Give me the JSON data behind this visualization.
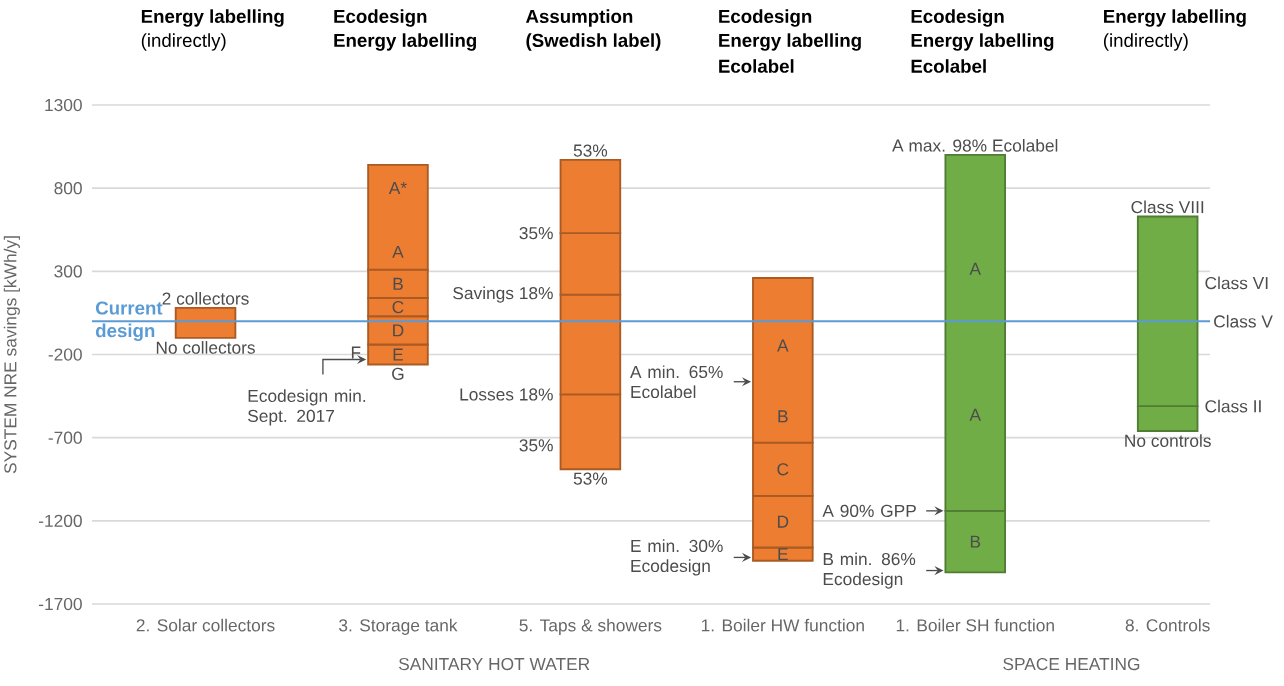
{
  "chart_data": {
    "type": "bar",
    "categories": [
      "2. Solar collectors",
      "3. Storage tank",
      "5. Taps & showers",
      "1. Boiler HW function",
      "1. Boiler SH function",
      "8. Controls"
    ],
    "series": [
      {
        "colors": [
          "#ed7d31",
          "#ed7d31",
          "#ed7d31",
          "#ed7d31",
          "#70ad47",
          "#70ad47"
        ],
        "base": [
          -100,
          -260,
          -890,
          -1440,
          -1510,
          -660
        ],
        "values": [
          180,
          120,
          450,
          80,
          370,
          150
        ]
      },
      {
        "colors": [
          "#ed7d31",
          "#ed7d31",
          "#ed7d31",
          "#ed7d31",
          "#70ad47",
          "#70ad47"
        ],
        "base": [
          null,
          -140,
          -440,
          -1360,
          -1140,
          -510
        ],
        "values": [
          null,
          170,
          600,
          310,
          2140,
          1140
        ]
      },
      {
        "colors": [
          "#ed7d31",
          "#ed7d31",
          "#ed7d31",
          "#ed7d31",
          "#70ad47",
          "#70ad47"
        ],
        "base": [
          null,
          30,
          160,
          -1050,
          null,
          null
        ],
        "values": [
          null,
          110,
          370,
          320,
          null,
          null
        ]
      },
      {
        "colors": [
          "#ed7d31",
          "#ed7d31",
          "#ed7d31",
          "#ed7d31",
          "#70ad47",
          "#70ad47"
        ],
        "base": [
          null,
          140,
          530,
          -730,
          null,
          null
        ],
        "values": [
          null,
          170,
          440,
          990,
          null,
          null
        ]
      },
      {
        "colors": [
          "#ed7d31",
          "#ed7d31",
          "#ed7d31",
          "#ed7d31",
          "#70ad47",
          "#70ad47"
        ],
        "base": [
          null,
          310,
          null,
          null,
          null,
          null
        ],
        "values": [
          null,
          630,
          null,
          null,
          null,
          null
        ]
      }
    ],
    "ylabel": "SYSTEM NRE savings [kWh/y]",
    "ylim": [
      -1700,
      1300
    ],
    "yticks": [
      1300,
      800,
      300,
      -200,
      -700,
      -1200,
      -1700
    ],
    "grid": "y",
    "ref_lines": [
      {
        "axis": "y",
        "value": 0,
        "label": "Current design",
        "color": "#5b9bd5"
      }
    ],
    "annotations": [
      "Energy labelling",
      "(indirectly)",
      "Ecodesign",
      "Energy labelling",
      "Assumption",
      "(Swedish label)",
      "Ecodesign",
      "Energy labelling",
      "Ecolabel",
      "Ecodesign",
      "Energy labelling",
      "Ecolabel",
      "Energy labelling",
      "(indirectly)",
      "SANITARY HOT WATER",
      "SPACE HEATING",
      {
        "text": "2 collectors",
        "x": "2. Solar collectors",
        "y": 80
      },
      {
        "text": "No collectors",
        "x": "2. Solar collectors",
        "y": -100
      },
      "A*",
      "A",
      "B",
      "C",
      "D",
      "E",
      {
        "text": "G",
        "x": "3. Storage tank",
        "y": -260
      },
      "F",
      "Ecodesign min. Sept. 2017",
      {
        "text": "53%",
        "x": "5. Taps & showers",
        "y": 970
      },
      {
        "text": "35%",
        "x": "5. Taps & showers",
        "y": 530
      },
      {
        "text": "Savings 18%",
        "x": "5. Taps & showers",
        "y": 160
      },
      {
        "text": "Losses 18%",
        "x": "5. Taps & showers",
        "y": -440
      },
      "35%",
      {
        "text": "53%",
        "x": "5. Taps & showers",
        "y": -890
      },
      "A min. 65% Ecolabel",
      "A",
      "B",
      "C",
      "D",
      "E",
      "E min. 30% Ecodesign",
      {
        "text": "A max. 98% Ecolabel",
        "x": "1. Boiler SH function",
        "y": 1000
      },
      "A",
      "A",
      "B",
      "A 90% GPP",
      "B min. 86% Ecodesign",
      {
        "text": "Class VIII",
        "x": "8. Controls",
        "y": 630
      },
      "Class VI",
      {
        "text": "Class V",
        "x": "8. Controls",
        "y": 0
      },
      {
        "text": "Class II",
        "x": "8. Controls",
        "y": -510
      },
      {
        "text": "No controls",
        "x": "8. Controls",
        "y": -660
      }
    ]
  }
}
